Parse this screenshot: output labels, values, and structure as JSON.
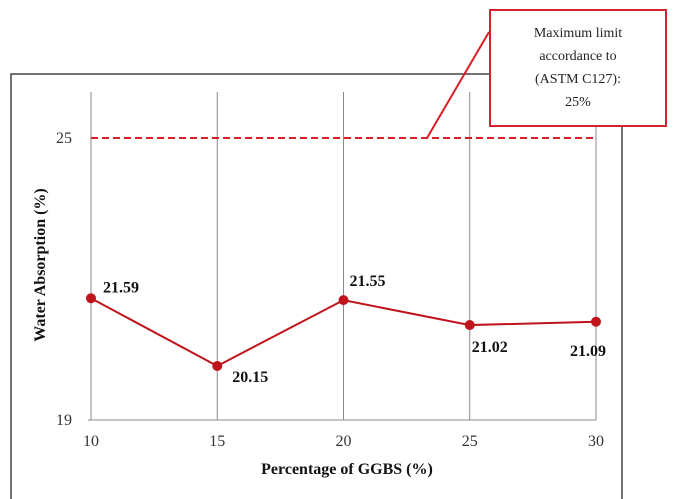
{
  "chart_data": {
    "type": "line",
    "title": "",
    "xlabel": "Percentage of GGBS (%)",
    "ylabel": "Water Absorption (%)",
    "x": [
      10,
      15,
      20,
      25,
      30
    ],
    "x_tick_labels": [
      "10",
      "15",
      "20",
      "25",
      "30"
    ],
    "y_tick_labels": [
      "25",
      "19"
    ],
    "ylim": [
      19,
      25.8
    ],
    "grid": "vertical",
    "series": [
      {
        "values": [
          21.59,
          20.15,
          21.55,
          21.02,
          21.09
        ],
        "labels": [
          "21.59",
          "20.15",
          "21.55",
          "21.02",
          "21.09"
        ],
        "color": "#c0141c"
      }
    ],
    "reference_line": {
      "value": 25,
      "style": "dashed",
      "color": "#d81e28"
    },
    "annotation": {
      "lines": [
        "Maximum limit",
        "accordance to",
        "(ASTM C127):",
        "25%"
      ],
      "border_color": "#d81e28"
    }
  }
}
